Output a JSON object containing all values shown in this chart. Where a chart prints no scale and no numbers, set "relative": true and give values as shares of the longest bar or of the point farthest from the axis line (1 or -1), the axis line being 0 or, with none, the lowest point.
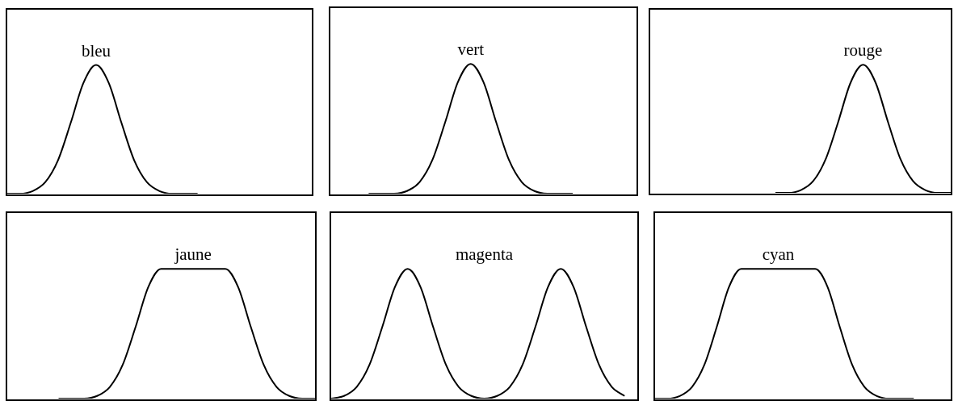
{
  "chart_data": [
    {
      "type": "line",
      "title": "bleu",
      "relative": true,
      "color": "#000000",
      "categories": [
        null,
        null,
        null,
        null,
        null,
        null,
        null,
        null,
        null,
        null,
        null,
        null,
        null,
        null,
        null,
        null,
        null,
        null,
        null,
        null,
        null,
        null,
        null,
        null,
        null
      ],
      "values": [
        0,
        0,
        0.02,
        0.09,
        0.26,
        0.55,
        0.86,
        1,
        0.86,
        0.55,
        0.26,
        0.09,
        0.02,
        0,
        0,
        0,
        null,
        null,
        null,
        null,
        null,
        null,
        null,
        null,
        null
      ]
    },
    {
      "type": "line",
      "title": "vert",
      "relative": true,
      "color": "#000000",
      "categories": [
        null,
        null,
        null,
        null,
        null,
        null,
        null,
        null,
        null,
        null,
        null,
        null,
        null,
        null,
        null,
        null,
        null,
        null,
        null,
        null,
        null,
        null,
        null,
        null,
        null
      ],
      "values": [
        null,
        null,
        null,
        0,
        0,
        0,
        0.02,
        0.09,
        0.26,
        0.55,
        0.86,
        1,
        0.86,
        0.55,
        0.26,
        0.09,
        0.02,
        0,
        0,
        0,
        null,
        null,
        null,
        null,
        null
      ]
    },
    {
      "type": "line",
      "title": "rouge",
      "relative": true,
      "color": "#000000",
      "categories": [
        null,
        null,
        null,
        null,
        null,
        null,
        null,
        null,
        null,
        null,
        null,
        null,
        null,
        null,
        null,
        null,
        null,
        null,
        null,
        null,
        null,
        null,
        null,
        null,
        null
      ],
      "values": [
        null,
        null,
        null,
        null,
        null,
        null,
        null,
        null,
        null,
        null,
        0,
        0,
        0.02,
        0.09,
        0.26,
        0.55,
        0.86,
        1,
        0.86,
        0.55,
        0.26,
        0.09,
        0.02,
        0,
        0
      ]
    },
    {
      "type": "line",
      "title": "jaune",
      "relative": true,
      "color": "#000000",
      "categories": [
        null,
        null,
        null,
        null,
        null,
        null,
        null,
        null,
        null,
        null,
        null,
        null,
        null,
        null,
        null,
        null,
        null,
        null,
        null,
        null,
        null,
        null,
        null,
        null,
        null
      ],
      "values": [
        null,
        null,
        null,
        null,
        0,
        0,
        0,
        0.02,
        0.09,
        0.26,
        0.55,
        0.86,
        1,
        1,
        1,
        1,
        1,
        1,
        0.86,
        0.55,
        0.26,
        0.09,
        0.02,
        0,
        0
      ]
    },
    {
      "type": "line",
      "title": "magenta",
      "relative": true,
      "color": "#000000",
      "categories": [
        null,
        null,
        null,
        null,
        null,
        null,
        null,
        null,
        null,
        null,
        null,
        null,
        null,
        null,
        null,
        null,
        null,
        null,
        null,
        null,
        null,
        null,
        null,
        null,
        null
      ],
      "values": [
        0,
        0.02,
        0.09,
        0.26,
        0.55,
        0.86,
        1,
        0.86,
        0.55,
        0.26,
        0.09,
        0.02,
        0,
        0.02,
        0.09,
        0.26,
        0.55,
        0.86,
        1,
        0.86,
        0.55,
        0.26,
        0.09,
        0.02,
        null
      ]
    },
    {
      "type": "line",
      "title": "cyan",
      "relative": true,
      "color": "#000000",
      "categories": [
        null,
        null,
        null,
        null,
        null,
        null,
        null,
        null,
        null,
        null,
        null,
        null,
        null,
        null,
        null,
        null,
        null,
        null,
        null,
        null,
        null,
        null,
        null,
        null,
        null
      ],
      "values": [
        0,
        0,
        0.02,
        0.09,
        0.26,
        0.55,
        0.86,
        1,
        1,
        1,
        1,
        1,
        1,
        1,
        0.86,
        0.55,
        0.26,
        0.09,
        0.02,
        0,
        0,
        0,
        null,
        null,
        null
      ]
    }
  ]
}
